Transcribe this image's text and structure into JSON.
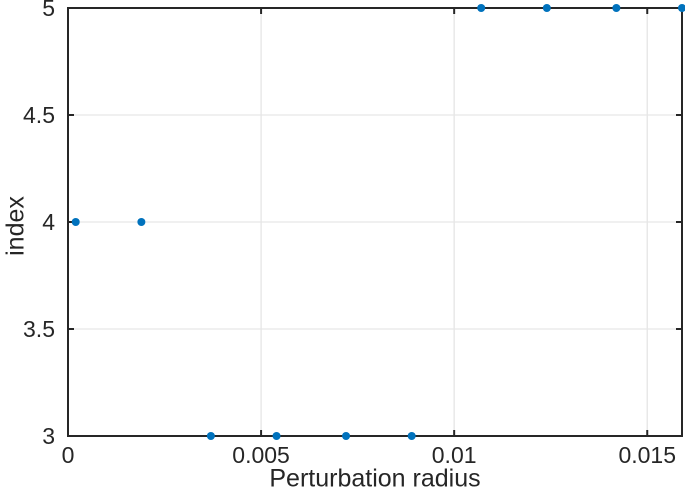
{
  "chart_data": {
    "type": "scatter",
    "xlabel": "Perturbation radius",
    "ylabel": "index",
    "x": [
      0.0002,
      0.0019,
      0.0037,
      0.0054,
      0.0072,
      0.0089,
      0.0107,
      0.0124,
      0.0142,
      0.0159
    ],
    "y": [
      4,
      4,
      3,
      3,
      3,
      3,
      5,
      5,
      5,
      5
    ],
    "xlim": [
      0,
      0.0159
    ],
    "ylim": [
      3,
      5
    ],
    "xticks": [
      0,
      0.005,
      0.01,
      0.015
    ],
    "xtick_labels": [
      "0",
      "0.005",
      "0.01",
      "0.015"
    ],
    "yticks": [
      3,
      3.5,
      4,
      4.5,
      5
    ],
    "ytick_labels": [
      "3",
      "3.5",
      "4",
      "4.5",
      "5"
    ],
    "grid": true,
    "legend_position": "none",
    "marker": {
      "shape": "circle",
      "radius_px": 4,
      "color": "#0072BD"
    },
    "colors": {
      "axis": "#262626",
      "grid": "#e6e6e6",
      "tick_label": "#262626",
      "background": "#ffffff"
    }
  }
}
